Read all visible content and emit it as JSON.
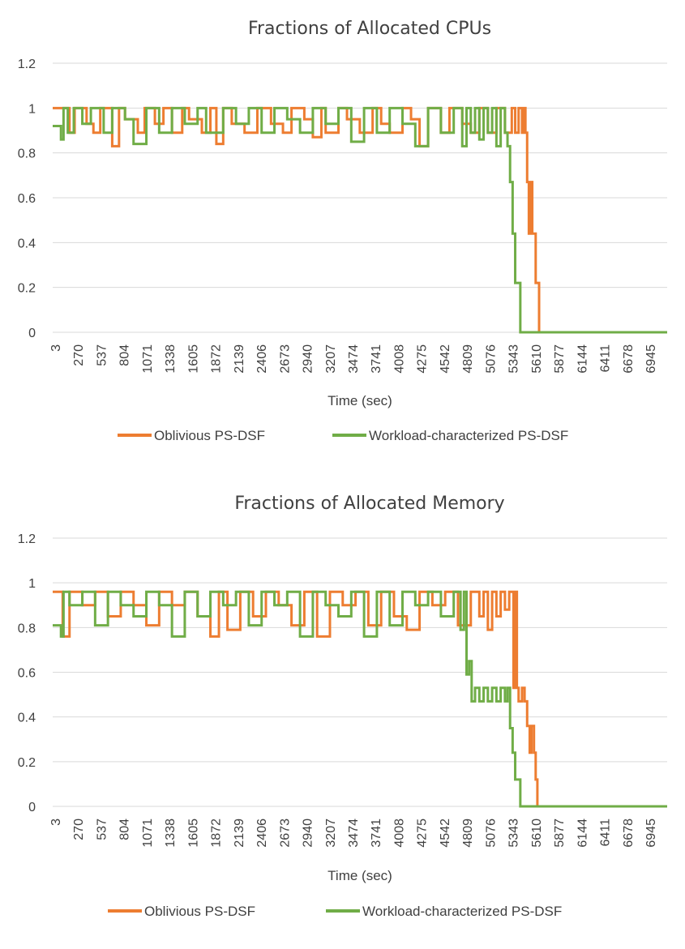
{
  "chart_data": [
    {
      "type": "line",
      "title": "Fractions of Allocated CPUs",
      "xlabel": "Time (sec)",
      "ylabel": "",
      "ylim": [
        0,
        1.2
      ],
      "y_ticks": [
        "0",
        "0.2",
        "0.4",
        "0.6",
        "0.8",
        "1",
        "1.2"
      ],
      "x_tick_labels": [
        "3",
        "270",
        "537",
        "804",
        "1071",
        "1338",
        "1605",
        "1872",
        "2139",
        "2406",
        "2673",
        "2940",
        "3207",
        "3474",
        "3741",
        "4008",
        "4275",
        "4542",
        "4809",
        "5076",
        "5343",
        "5610",
        "5877",
        "6144",
        "6411",
        "6678",
        "6945"
      ],
      "xlim": [
        3,
        7200
      ],
      "grid": "horizontal",
      "legend": "bottom",
      "series": [
        {
          "name": "Oblivious PS-DSF",
          "color": "#ED7D31",
          "x": [
            3,
            200,
            260,
            400,
            480,
            560,
            700,
            780,
            850,
            1000,
            1080,
            1200,
            1300,
            1400,
            1520,
            1600,
            1750,
            1850,
            1920,
            2000,
            2100,
            2250,
            2400,
            2560,
            2700,
            2800,
            2950,
            3050,
            3150,
            3200,
            3350,
            3450,
            3600,
            3750,
            3850,
            3950,
            4100,
            4200,
            4300,
            4400,
            4550,
            4650,
            4800,
            4900,
            5000,
            5100,
            5200,
            5300,
            5380,
            5420,
            5460,
            5500,
            5520,
            5540,
            5560,
            5580,
            5600,
            5620,
            5640,
            5660,
            5680,
            5700,
            7200
          ],
          "y": [
            1,
            0.89,
            1,
            0.93,
            0.89,
            1,
            0.83,
            1,
            0.95,
            0.89,
            1,
            0.93,
            1,
            0.89,
            1,
            0.95,
            0.89,
            1,
            0.84,
            1,
            0.93,
            0.89,
            1,
            0.93,
            0.89,
            1,
            0.95,
            0.87,
            1,
            0.89,
            1,
            0.95,
            0.89,
            1,
            0.93,
            0.89,
            1,
            0.95,
            0.83,
            1,
            0.89,
            1,
            0.93,
            0.89,
            1,
            0.89,
            1,
            0.89,
            1,
            0.89,
            1,
            0.89,
            1,
            0.89,
            0.67,
            0.44,
            0.67,
            0.44,
            0.44,
            0.22,
            0.22,
            0,
            0
          ]
        },
        {
          "name": "Workload-characterized PS-DSF",
          "color": "#70AD47",
          "x": [
            3,
            60,
            100,
            130,
            180,
            250,
            350,
            450,
            600,
            700,
            850,
            950,
            1100,
            1250,
            1400,
            1550,
            1700,
            1800,
            2000,
            2150,
            2300,
            2450,
            2600,
            2750,
            2900,
            3050,
            3200,
            3350,
            3500,
            3650,
            3800,
            3950,
            4100,
            4250,
            4400,
            4550,
            4700,
            4800,
            4850,
            4900,
            4950,
            5000,
            5050,
            5100,
            5150,
            5200,
            5250,
            5300,
            5330,
            5360,
            5390,
            5420,
            5450,
            5480,
            5510,
            7200
          ],
          "y": [
            0.92,
            0.92,
            0.86,
            1,
            0.89,
            1,
            0.93,
            1,
            0.89,
            1,
            0.95,
            0.84,
            1,
            0.89,
            1,
            0.93,
            1,
            0.89,
            1,
            0.93,
            1,
            0.89,
            1,
            0.95,
            0.89,
            1,
            0.93,
            1,
            0.85,
            1,
            0.89,
            1,
            0.93,
            0.83,
            1,
            0.89,
            1,
            0.83,
            1,
            0.89,
            1,
            0.86,
            1,
            0.89,
            1,
            0.83,
            1,
            0.89,
            0.83,
            0.67,
            0.44,
            0.22,
            0.22,
            0,
            0,
            0
          ]
        }
      ]
    },
    {
      "type": "line",
      "title": "Fractions of Allocated Memory",
      "xlabel": "Time (sec)",
      "ylabel": "",
      "ylim": [
        0,
        1.2
      ],
      "y_ticks": [
        "0",
        "0.2",
        "0.4",
        "0.6",
        "0.8",
        "1",
        "1.2"
      ],
      "x_tick_labels": [
        "3",
        "270",
        "537",
        "804",
        "1071",
        "1338",
        "1605",
        "1872",
        "2139",
        "2406",
        "2673",
        "2940",
        "3207",
        "3474",
        "3741",
        "4008",
        "4275",
        "4542",
        "4809",
        "5076",
        "5343",
        "5610",
        "5877",
        "6144",
        "6411",
        "6678",
        "6945"
      ],
      "xlim": [
        3,
        7200
      ],
      "grid": "horizontal",
      "legend": "bottom",
      "series": [
        {
          "name": "Oblivious PS-DSF",
          "color": "#ED7D31",
          "x": [
            3,
            80,
            120,
            200,
            350,
            500,
            650,
            800,
            950,
            1100,
            1250,
            1400,
            1550,
            1700,
            1850,
            1950,
            2050,
            2200,
            2350,
            2500,
            2650,
            2800,
            2950,
            3100,
            3250,
            3400,
            3550,
            3700,
            3850,
            4000,
            4150,
            4300,
            4450,
            4600,
            4750,
            4900,
            5000,
            5050,
            5100,
            5150,
            5200,
            5250,
            5300,
            5350,
            5400,
            5420,
            5440,
            5460,
            5500,
            5530,
            5560,
            5590,
            5610,
            5640,
            5660,
            5680,
            7200
          ],
          "y": [
            0.96,
            0.96,
            0.76,
            0.96,
            0.9,
            0.96,
            0.85,
            0.96,
            0.9,
            0.81,
            0.96,
            0.9,
            0.96,
            0.85,
            0.76,
            0.96,
            0.79,
            0.96,
            0.85,
            0.96,
            0.9,
            0.81,
            0.96,
            0.76,
            0.96,
            0.9,
            0.96,
            0.81,
            0.96,
            0.85,
            0.79,
            0.96,
            0.9,
            0.96,
            0.81,
            0.96,
            0.85,
            0.96,
            0.79,
            0.96,
            0.85,
            0.96,
            0.88,
            0.96,
            0.53,
            0.96,
            0.53,
            0.47,
            0.53,
            0.47,
            0.36,
            0.24,
            0.36,
            0.24,
            0.12,
            0,
            0
          ]
        },
        {
          "name": "Workload-characterized PS-DSF",
          "color": "#70AD47",
          "x": [
            3,
            60,
            100,
            130,
            200,
            350,
            500,
            650,
            800,
            950,
            1100,
            1250,
            1400,
            1550,
            1700,
            1850,
            2000,
            2150,
            2300,
            2450,
            2600,
            2750,
            2900,
            3050,
            3200,
            3350,
            3500,
            3650,
            3800,
            3950,
            4100,
            4250,
            4400,
            4550,
            4700,
            4780,
            4820,
            4850,
            4880,
            4910,
            4950,
            5000,
            5050,
            5100,
            5150,
            5200,
            5250,
            5300,
            5330,
            5360,
            5390,
            5420,
            5450,
            5480,
            5510,
            7200
          ],
          "y": [
            0.81,
            0.81,
            0.76,
            0.96,
            0.9,
            0.96,
            0.81,
            0.96,
            0.9,
            0.85,
            0.96,
            0.9,
            0.76,
            0.96,
            0.85,
            0.96,
            0.9,
            0.96,
            0.81,
            0.96,
            0.9,
            0.96,
            0.76,
            0.96,
            0.9,
            0.85,
            0.96,
            0.76,
            0.96,
            0.81,
            0.96,
            0.9,
            0.96,
            0.85,
            0.96,
            0.79,
            0.96,
            0.59,
            0.65,
            0.47,
            0.53,
            0.47,
            0.53,
            0.47,
            0.53,
            0.47,
            0.53,
            0.47,
            0.53,
            0.35,
            0.24,
            0.12,
            0.12,
            0,
            0,
            0
          ]
        }
      ]
    }
  ]
}
